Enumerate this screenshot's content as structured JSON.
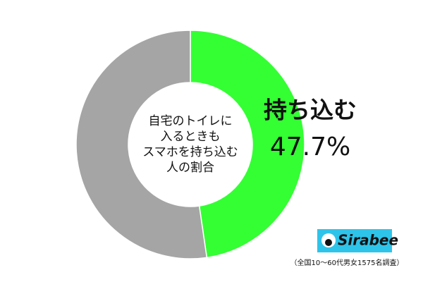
{
  "chart_data": {
    "type": "donut",
    "categories": [
      "持ち込む",
      null
    ],
    "values": [
      47.7,
      52.3
    ],
    "value_labels": [
      "47.7%",
      null
    ],
    "colors": [
      "#33ff33",
      "#a5a5a5"
    ],
    "center_text": [
      "自宅のトイレに",
      "入るときも",
      "スマホを持ち込む",
      "人の割合"
    ]
  },
  "logo": "Sirabee",
  "note": "（全国10～60代男女1575名調査）"
}
